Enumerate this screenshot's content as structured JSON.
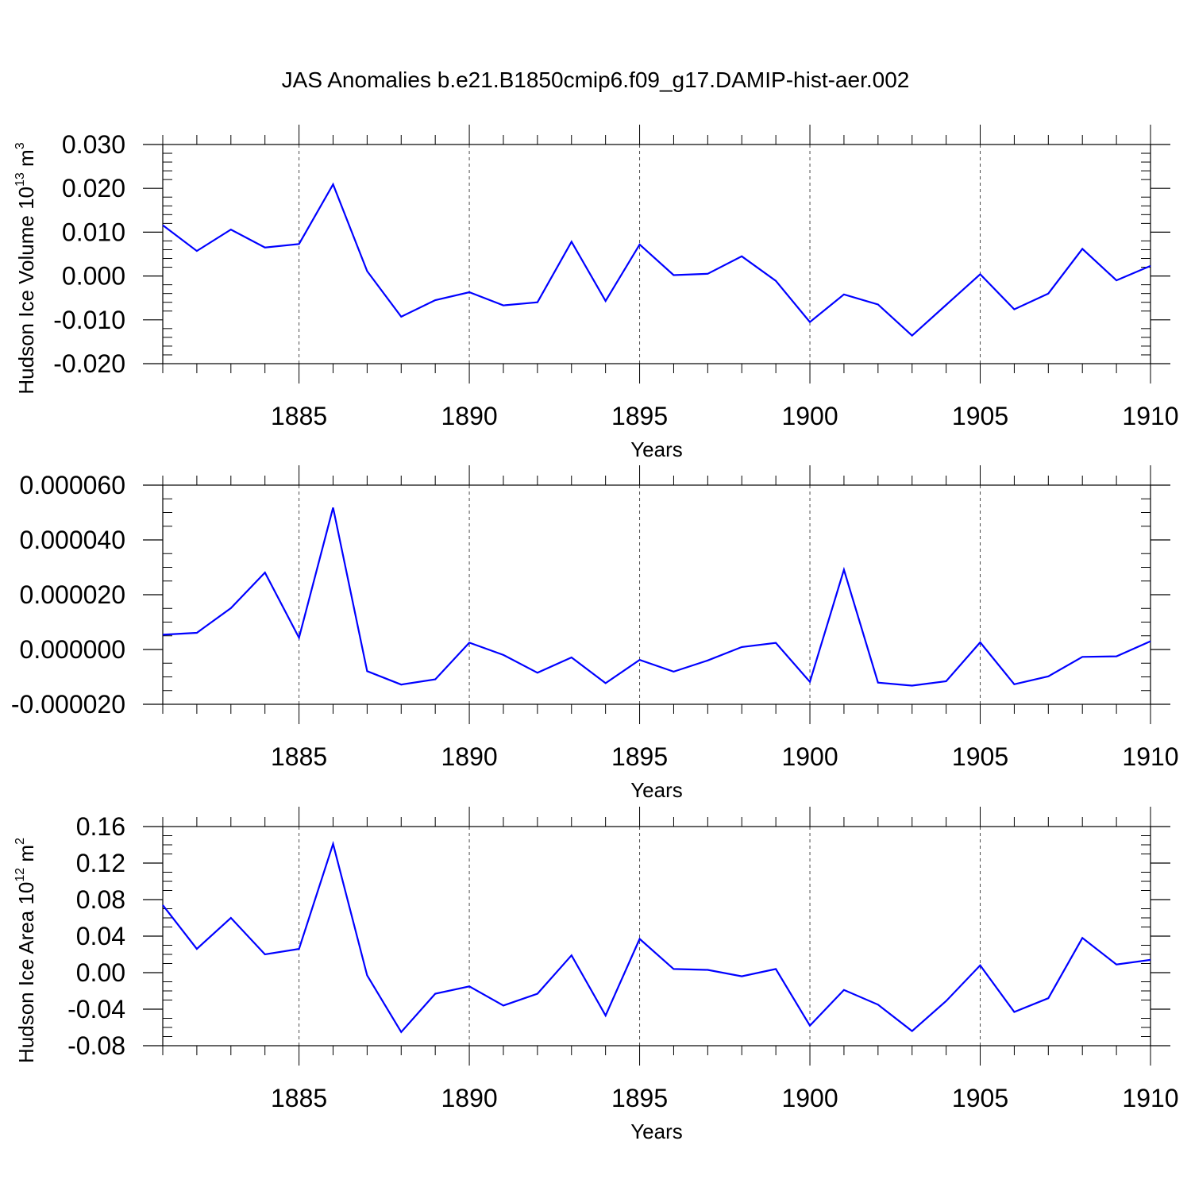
{
  "title": "JAS Anomalies b.e21.B1850cmip6.f09_g17.DAMIP-hist-aer.002",
  "colors": {
    "line": "#0000ff",
    "axis": "#000000",
    "grid": "#000000"
  },
  "chart_data": [
    {
      "type": "line",
      "title": "",
      "xlabel": "Years",
      "ylabel": {
        "prefix": "Hudson Ice Volume 10",
        "exp": "13",
        "mid": " m",
        "unit_exp": "3"
      },
      "xlim": [
        1881,
        1910
      ],
      "ylim": [
        -0.02,
        0.03
      ],
      "grid": "vertical dashed at major x ticks",
      "x_ticks": [
        1885,
        1890,
        1895,
        1900,
        1905,
        1910
      ],
      "y_ticks": [
        -0.02,
        -0.01,
        0.0,
        0.01,
        0.02,
        0.03
      ],
      "y_tick_labels": [
        "-0.020",
        "-0.010",
        "0.000",
        "0.010",
        "0.020",
        "0.030"
      ],
      "y_minor_step": 0.002,
      "x": [
        1881,
        1882,
        1883,
        1884,
        1885,
        1886,
        1887,
        1888,
        1889,
        1890,
        1891,
        1892,
        1893,
        1894,
        1895,
        1896,
        1897,
        1898,
        1899,
        1900,
        1901,
        1902,
        1903,
        1904,
        1905,
        1906,
        1907,
        1908,
        1909,
        1910
      ],
      "values": [
        0.0116,
        0.0057,
        0.0106,
        0.0065,
        0.0073,
        0.0209,
        0.0011,
        -0.0093,
        -0.0055,
        -0.0037,
        -0.0067,
        -0.006,
        0.0078,
        -0.0057,
        0.0072,
        0.0002,
        0.0005,
        0.0045,
        -0.0011,
        -0.0105,
        -0.0042,
        -0.0065,
        -0.0136,
        -0.0066,
        0.0004,
        -0.0076,
        -0.004,
        0.0062,
        -0.001,
        0.0023
      ]
    },
    {
      "type": "line",
      "title": "",
      "xlabel": "Years",
      "ylabel": null,
      "xlim": [
        1881,
        1910
      ],
      "ylim": [
        -2e-05,
        6e-05
      ],
      "grid": "vertical dashed at major x ticks",
      "x_ticks": [
        1885,
        1890,
        1895,
        1900,
        1905,
        1910
      ],
      "y_ticks": [
        -2e-05,
        0.0,
        2e-05,
        4e-05,
        6e-05
      ],
      "y_tick_labels": [
        "-0.000020",
        "0.000000",
        "0.000020",
        "0.000040",
        "0.000060"
      ],
      "y_minor_step": 5e-06,
      "x": [
        1881,
        1882,
        1883,
        1884,
        1885,
        1886,
        1887,
        1888,
        1889,
        1890,
        1891,
        1892,
        1893,
        1894,
        1895,
        1896,
        1897,
        1898,
        1899,
        1900,
        1901,
        1902,
        1903,
        1904,
        1905,
        1906,
        1907,
        1908,
        1909,
        1910
      ],
      "values": [
        5.4e-06,
        6.1e-06,
        1.51e-05,
        2.81e-05,
        4.3e-06,
        5.18e-05,
        -7.9e-06,
        -1.28e-05,
        -1.09e-05,
        2.5e-06,
        -2e-06,
        -8.5e-06,
        -2.9e-06,
        -1.23e-05,
        -3.8e-06,
        -8.1e-06,
        -4e-06,
        9e-07,
        2.4e-06,
        -1.18e-05,
        2.91e-05,
        -1.21e-05,
        -1.32e-05,
        -1.16e-05,
        2.6e-06,
        -1.27e-05,
        -9.8e-06,
        -2.7e-06,
        -2.5e-06,
        3e-06
      ]
    },
    {
      "type": "line",
      "title": "",
      "xlabel": "Years",
      "ylabel": {
        "prefix": "Hudson Ice Area 10",
        "exp": "12",
        "mid": " m",
        "unit_exp": "2"
      },
      "xlim": [
        1881,
        1910
      ],
      "ylim": [
        -0.08,
        0.16
      ],
      "grid": "vertical dashed at major x ticks",
      "x_ticks": [
        1885,
        1890,
        1895,
        1900,
        1905,
        1910
      ],
      "y_ticks": [
        -0.08,
        -0.04,
        0.0,
        0.04,
        0.08,
        0.12,
        0.16
      ],
      "y_tick_labels": [
        "-0.08",
        "-0.04",
        "0.00",
        "0.04",
        "0.08",
        "0.12",
        "0.16"
      ],
      "y_minor_step": 0.01,
      "x": [
        1881,
        1882,
        1883,
        1884,
        1885,
        1886,
        1887,
        1888,
        1889,
        1890,
        1891,
        1892,
        1893,
        1894,
        1895,
        1896,
        1897,
        1898,
        1899,
        1900,
        1901,
        1902,
        1903,
        1904,
        1905,
        1906,
        1907,
        1908,
        1909,
        1910
      ],
      "values": [
        0.074,
        0.026,
        0.06,
        0.02,
        0.026,
        0.141,
        -0.003,
        -0.065,
        -0.023,
        -0.015,
        -0.036,
        -0.023,
        0.019,
        -0.047,
        0.037,
        0.004,
        0.003,
        -0.004,
        0.004,
        -0.058,
        -0.019,
        -0.035,
        -0.064,
        -0.031,
        0.008,
        -0.043,
        -0.028,
        0.038,
        0.009,
        0.014
      ]
    }
  ]
}
